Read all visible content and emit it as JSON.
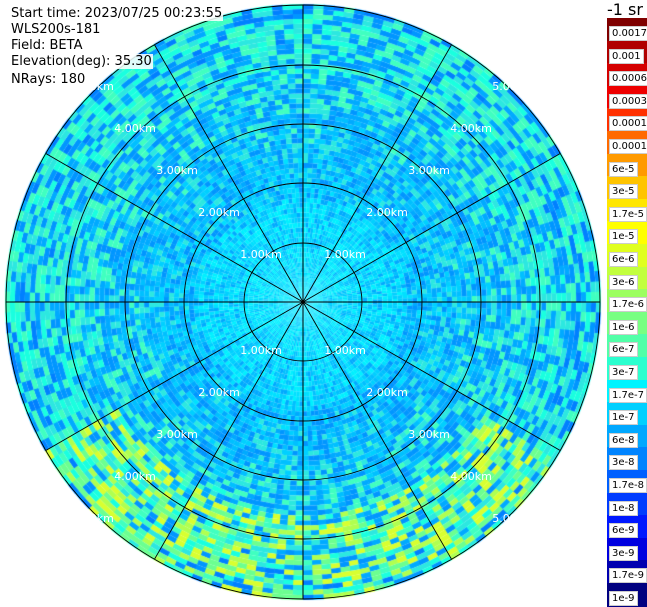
{
  "header": {
    "start_time": "Start time: 2023/07/25 00:23:55",
    "instrument": "WLS200s-181",
    "field": "Field: BETA",
    "elevation": "Elevation(deg): 35.30",
    "nrays": "NRays: 180"
  },
  "ring_labels": [
    "1.00km",
    "2.00km",
    "3.00km",
    "4.00km",
    "5.00km"
  ],
  "colorbar": {
    "title": "-1 sr",
    "ticks": [
      "0.0017",
      "0.001",
      "0.0006",
      "0.0003",
      "0.00017",
      "0.0001",
      "6e-5",
      "3e-5",
      "1.7e-5",
      "1e-5",
      "6e-6",
      "3e-6",
      "1.7e-6",
      "1e-6",
      "6e-7",
      "3e-7",
      "1.7e-7",
      "1e-7",
      "6e-8",
      "3e-8",
      "1.7e-8",
      "1e-8",
      "6e-9",
      "3e-9",
      "1.7e-9",
      "1e-9"
    ],
    "colors": [
      "#7f0000",
      "#b00000",
      "#d40000",
      "#ee0000",
      "#ff3000",
      "#ff6a00",
      "#ff9a00",
      "#ffc400",
      "#ffe600",
      "#ffff00",
      "#e0ff1f",
      "#c2ff3e",
      "#9cff60",
      "#78ff82",
      "#52ffa8",
      "#2cffcf",
      "#00f4ff",
      "#00d0ff",
      "#00a8ff",
      "#0084ff",
      "#0060ff",
      "#003cff",
      "#0018ff",
      "#0000e0",
      "#0000b0",
      "#000080"
    ]
  }
}
